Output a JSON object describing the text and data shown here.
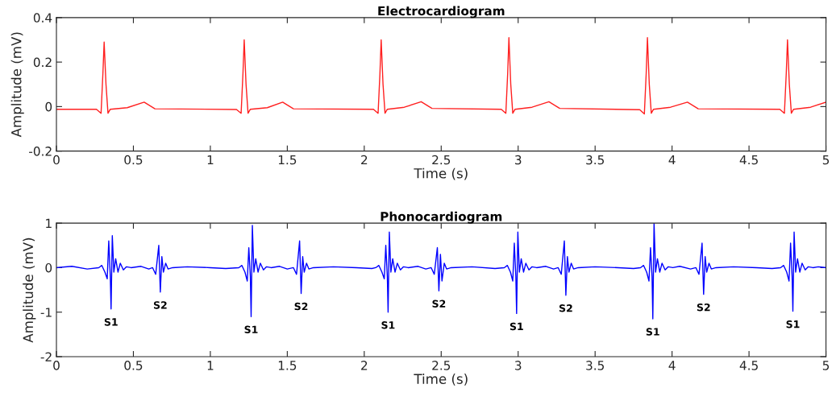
{
  "chart_data": [
    {
      "type": "line",
      "title": "Electrocardiogram",
      "xlabel": "Time (s)",
      "ylabel": "Amplitude (mV)",
      "xlim": [
        0,
        5
      ],
      "ylim": [
        -0.2,
        0.4
      ],
      "xticks": [
        0,
        0.5,
        1,
        1.5,
        2,
        2.5,
        3,
        3.5,
        4,
        4.5,
        5
      ],
      "yticks": [
        -0.2,
        0,
        0.2,
        0.4
      ],
      "series": [
        {
          "color": "#ff2020",
          "x": [
            0,
            0.26,
            0.29,
            0.302,
            0.31,
            0.322,
            0.335,
            0.35,
            0.46,
            0.57,
            0.64,
            1.17,
            1.2,
            1.212,
            1.22,
            1.232,
            1.245,
            1.26,
            1.37,
            1.47,
            1.54,
            2.06,
            2.09,
            2.102,
            2.11,
            2.122,
            2.135,
            2.15,
            2.26,
            2.37,
            2.44,
            2.89,
            2.92,
            2.932,
            2.94,
            2.952,
            2.965,
            2.98,
            3.09,
            3.2,
            3.27,
            3.79,
            3.82,
            3.832,
            3.84,
            3.852,
            3.865,
            3.88,
            3.99,
            4.1,
            4.17,
            4.7,
            4.73,
            4.742,
            4.75,
            4.762,
            4.775,
            4.79,
            4.9,
            5.0
          ],
          "values": [
            -0.012,
            -0.012,
            -0.03,
            0.15,
            0.29,
            0.1,
            -0.03,
            -0.012,
            -0.005,
            0.02,
            -0.01,
            -0.013,
            -0.03,
            0.15,
            0.3,
            0.1,
            -0.03,
            -0.012,
            -0.005,
            0.02,
            -0.01,
            -0.012,
            -0.03,
            0.15,
            0.3,
            0.1,
            -0.03,
            -0.012,
            -0.003,
            0.022,
            -0.008,
            -0.012,
            -0.03,
            0.15,
            0.31,
            0.1,
            -0.03,
            -0.012,
            -0.003,
            0.022,
            -0.008,
            -0.014,
            -0.033,
            0.15,
            0.31,
            0.1,
            -0.03,
            -0.012,
            -0.003,
            0.02,
            -0.01,
            -0.012,
            -0.03,
            0.15,
            0.3,
            0.1,
            -0.03,
            -0.012,
            -0.003,
            0.02
          ]
        }
      ]
    },
    {
      "type": "line",
      "title": "Phonocardiogram",
      "xlabel": "Time (s)",
      "ylabel": "Amplitude (mV)",
      "xlim": [
        0,
        5
      ],
      "ylim": [
        -2,
        1
      ],
      "xticks": [
        0,
        0.5,
        1,
        1.5,
        2,
        2.5,
        3,
        3.5,
        4,
        4.5,
        5
      ],
      "yticks": [
        -2,
        -1,
        0,
        1
      ],
      "series": [
        {
          "color": "#0000ff",
          "x": [
            0,
            0.1,
            0.2,
            0.275,
            0.295,
            0.315,
            0.33,
            0.34,
            0.35,
            0.355,
            0.363,
            0.373,
            0.385,
            0.4,
            0.415,
            0.435,
            0.455,
            0.485,
            0.55,
            0.6,
            0.625,
            0.645,
            0.665,
            0.675,
            0.685,
            0.695,
            0.71,
            0.725,
            0.755,
            0.85,
            1.0,
            1.1,
            1.185,
            1.205,
            1.225,
            1.24,
            1.25,
            1.26,
            1.265,
            1.273,
            1.283,
            1.295,
            1.31,
            1.325,
            1.345,
            1.365,
            1.395,
            1.45,
            1.5,
            1.54,
            1.56,
            1.58,
            1.59,
            1.6,
            1.61,
            1.625,
            1.64,
            1.67,
            1.8,
            1.95,
            2.05,
            2.075,
            2.095,
            2.115,
            2.13,
            2.14,
            2.15,
            2.155,
            2.163,
            2.173,
            2.185,
            2.2,
            2.215,
            2.235,
            2.255,
            2.285,
            2.35,
            2.4,
            2.435,
            2.455,
            2.475,
            2.485,
            2.495,
            2.505,
            2.52,
            2.535,
            2.565,
            2.7,
            2.85,
            2.91,
            2.93,
            2.95,
            2.965,
            2.975,
            2.985,
            2.99,
            2.998,
            3.008,
            3.02,
            3.035,
            3.05,
            3.07,
            3.09,
            3.12,
            3.18,
            3.23,
            3.26,
            3.28,
            3.3,
            3.31,
            3.32,
            3.33,
            3.345,
            3.36,
            3.39,
            3.5,
            3.65,
            3.75,
            3.795,
            3.815,
            3.835,
            3.85,
            3.86,
            3.87,
            3.875,
            3.883,
            3.893,
            3.905,
            3.92,
            3.935,
            3.955,
            3.975,
            4.005,
            4.05,
            4.12,
            4.155,
            4.175,
            4.195,
            4.205,
            4.215,
            4.225,
            4.24,
            4.255,
            4.285,
            4.4,
            4.55,
            4.65,
            4.705,
            4.725,
            4.745,
            4.76,
            4.77,
            4.78,
            4.785,
            4.793,
            4.803,
            4.815,
            4.83,
            4.845,
            4.865,
            4.885,
            4.915,
            4.95,
            5.0
          ],
          "values": [
            0,
            0.03,
            -0.03,
            0,
            0.05,
            -0.1,
            -0.25,
            0.6,
            -0.2,
            -0.93,
            0.72,
            -0.1,
            0.2,
            -0.1,
            0.1,
            -0.05,
            0.02,
            0,
            0.03,
            -0.03,
            0,
            -0.15,
            0.5,
            -0.55,
            0.25,
            -0.1,
            0.1,
            -0.03,
            0,
            0.02,
            0,
            -0.02,
            0,
            0.05,
            -0.1,
            -0.3,
            0.45,
            -0.2,
            -1.1,
            0.95,
            -0.1,
            0.2,
            -0.1,
            0.1,
            -0.05,
            0.02,
            0,
            0.03,
            -0.03,
            0,
            -0.15,
            0.6,
            -0.58,
            0.25,
            -0.1,
            0.1,
            -0.03,
            0,
            0.02,
            0,
            -0.02,
            0,
            0.05,
            -0.1,
            -0.25,
            0.5,
            -0.2,
            -1.0,
            0.8,
            -0.1,
            0.2,
            -0.1,
            0.1,
            -0.05,
            0.02,
            0,
            0.03,
            -0.03,
            0,
            -0.15,
            0.45,
            -0.52,
            0.3,
            -0.3,
            0.1,
            -0.03,
            0,
            0.02,
            -0.02,
            0,
            0.05,
            -0.1,
            -0.3,
            0.55,
            -0.2,
            -1.03,
            0.8,
            -0.1,
            0.2,
            -0.1,
            0.1,
            -0.05,
            0.02,
            0,
            0.03,
            -0.03,
            0,
            -0.15,
            0.6,
            -0.62,
            0.25,
            -0.1,
            0.1,
            -0.03,
            0,
            0.02,
            0,
            -0.02,
            0,
            0.05,
            -0.1,
            -0.3,
            0.45,
            -0.2,
            -1.15,
            1.0,
            -0.1,
            0.2,
            -0.1,
            0.1,
            -0.05,
            0.02,
            0,
            0.03,
            -0.03,
            0,
            -0.15,
            0.55,
            -0.6,
            0.25,
            -0.1,
            0.1,
            -0.03,
            0,
            0.02,
            0,
            -0.02,
            0,
            0.05,
            -0.1,
            -0.3,
            0.55,
            -0.2,
            -0.98,
            0.8,
            -0.1,
            0.2,
            -0.1,
            0.1,
            -0.05,
            0.02,
            0,
            0.02,
            0
          ]
        }
      ],
      "annotations": [
        {
          "text": "S1",
          "x": 0.355,
          "y": -0.93
        },
        {
          "text": "S2",
          "x": 0.675,
          "y": -0.55
        },
        {
          "text": "S1",
          "x": 1.265,
          "y": -1.1
        },
        {
          "text": "S2",
          "x": 1.59,
          "y": -0.58
        },
        {
          "text": "S1",
          "x": 2.155,
          "y": -1.0
        },
        {
          "text": "S2",
          "x": 2.485,
          "y": -0.52
        },
        {
          "text": "S1",
          "x": 2.99,
          "y": -1.03
        },
        {
          "text": "S2",
          "x": 3.31,
          "y": -0.62
        },
        {
          "text": "S1",
          "x": 3.875,
          "y": -1.15
        },
        {
          "text": "S2",
          "x": 4.205,
          "y": -0.6
        },
        {
          "text": "S1",
          "x": 4.785,
          "y": -0.98
        }
      ]
    }
  ]
}
